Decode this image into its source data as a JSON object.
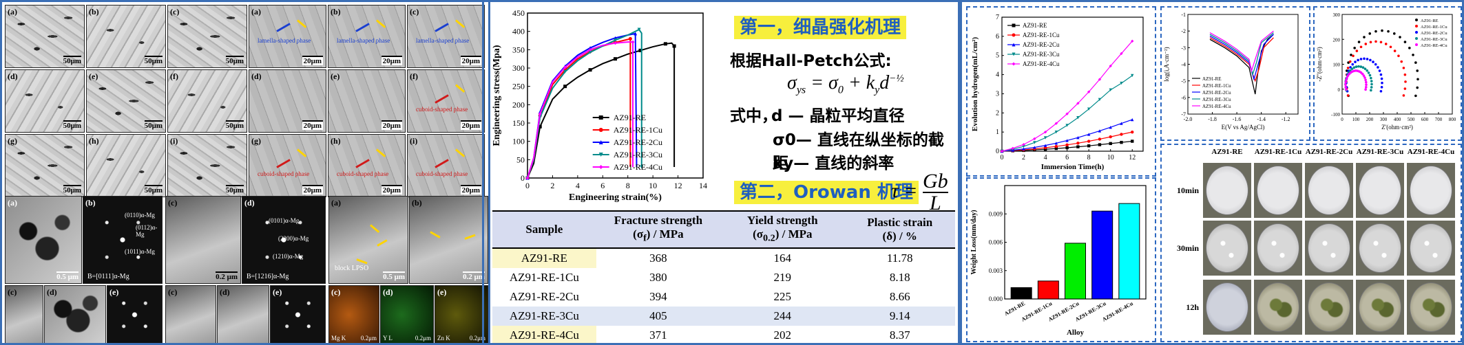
{
  "micrographs": {
    "optical": [
      {
        "label": "(a)",
        "scale": "50μm"
      },
      {
        "label": "(b)",
        "scale": "50μm"
      },
      {
        "label": "(c)",
        "scale": "50μm"
      },
      {
        "label": "(d)",
        "scale": "50μm"
      },
      {
        "label": "(e)",
        "scale": "50μm"
      },
      {
        "label": "(f)",
        "scale": "50μm"
      },
      {
        "label": "(g)",
        "scale": "50μm"
      },
      {
        "label": "(h)",
        "scale": "50μm"
      },
      {
        "label": "(i)",
        "scale": "50μm"
      }
    ],
    "sem": [
      {
        "label": "(a)",
        "scale": "20μm",
        "note": "lamella-shaped phase"
      },
      {
        "label": "(b)",
        "scale": "20μm",
        "note": "lamella-shaped phase"
      },
      {
        "label": "(c)",
        "scale": "20μm",
        "note": "lamella-shaped phase"
      },
      {
        "label": "(d)",
        "scale": "20μm",
        "note": ""
      },
      {
        "label": "(e)",
        "scale": "20μm",
        "note": ""
      },
      {
        "label": "(f)",
        "scale": "20μm",
        "note": "cuboid-shaped phase"
      },
      {
        "label": "(g)",
        "scale": "20μm",
        "note": "cuboid-shaped phase"
      },
      {
        "label": "(h)",
        "scale": "20μm",
        "note": "cuboid-shaped phase"
      },
      {
        "label": "(i)",
        "scale": "20μm",
        "note": "cuboid-shaped phase"
      }
    ],
    "tem_set1": {
      "scale_a": "0.5 μm",
      "zone": "B=[0111]α-Mg",
      "spot1": "(0110)α-Mg",
      "spot2": "(0112)α-Mg",
      "spot3": "(1011)α-Mg"
    },
    "tem_set2": {
      "scale_c": "0.2 μm",
      "zone": "B=[1216]α-Mg",
      "spot1": "(0101)α-Mg",
      "spot2": "(2200)α-Mg",
      "spot3": "(1210)α-Mg"
    },
    "tem_set3": {
      "scale_a": "0.5 μm",
      "scale_b": "0.2 μm",
      "note": "block LPSO",
      "eds": [
        "Mg K",
        "Y L",
        "Zn K"
      ],
      "eds_scale": "0.2μm"
    }
  },
  "chart_data": [
    {
      "type": "line",
      "xlabel": "Engineering strain(%)",
      "ylabel": "Engineering stress(Mpa)",
      "xlim": [
        0,
        14
      ],
      "ylim": [
        0,
        450
      ],
      "xticks": [
        0,
        2,
        4,
        6,
        8,
        10,
        12,
        14
      ],
      "yticks": [
        0,
        50,
        100,
        150,
        200,
        250,
        300,
        350,
        400,
        450
      ],
      "legend": "center-right",
      "series": [
        {
          "name": "AZ91-RE",
          "color": "#000000",
          "marker": "square",
          "points": [
            [
              0,
              0
            ],
            [
              0.5,
              40
            ],
            [
              1,
              140
            ],
            [
              2,
              215
            ],
            [
              3,
              250
            ],
            [
              4,
              275
            ],
            [
              5,
              295
            ],
            [
              6,
              312
            ],
            [
              7,
              325
            ],
            [
              8,
              338
            ],
            [
              9,
              348
            ],
            [
              10,
              358
            ],
            [
              11,
              366
            ],
            [
              11.5,
              368
            ],
            [
              11.7,
              360
            ],
            [
              11.7,
              30
            ]
          ]
        },
        {
          "name": "AZ91-RE-1Cu",
          "color": "#ff0000",
          "marker": "circle",
          "points": [
            [
              0,
              0
            ],
            [
              0.5,
              50
            ],
            [
              1,
              170
            ],
            [
              2,
              255
            ],
            [
              3,
              295
            ],
            [
              4,
              325
            ],
            [
              5,
              345
            ],
            [
              6,
              360
            ],
            [
              7,
              370
            ],
            [
              8,
              378
            ],
            [
              8.2,
              380
            ],
            [
              8.2,
              30
            ]
          ]
        },
        {
          "name": "AZ91-RE-2Cu",
          "color": "#0000ff",
          "marker": "triangle",
          "points": [
            [
              0,
              0
            ],
            [
              0.5,
              55
            ],
            [
              1,
              180
            ],
            [
              2,
              265
            ],
            [
              3,
              305
            ],
            [
              4,
              335
            ],
            [
              5,
              355
            ],
            [
              6,
              370
            ],
            [
              7,
              382
            ],
            [
              8,
              390
            ],
            [
              8.6,
              394
            ],
            [
              8.7,
              30
            ]
          ]
        },
        {
          "name": "AZ91-RE-3Cu",
          "color": "#008b8b",
          "marker": "triangle-down",
          "points": [
            [
              0,
              0
            ],
            [
              0.5,
              50
            ],
            [
              1,
              165
            ],
            [
              2,
              245
            ],
            [
              3,
              290
            ],
            [
              4,
              320
            ],
            [
              5,
              343
            ],
            [
              6,
              360
            ],
            [
              7,
              376
            ],
            [
              8,
              390
            ],
            [
              8.9,
              405
            ],
            [
              9.1,
              395
            ],
            [
              9.1,
              30
            ]
          ]
        },
        {
          "name": "AZ91-RE-4Cu",
          "color": "#ff00ff",
          "marker": "diamond",
          "points": [
            [
              0,
              0
            ],
            [
              0.5,
              55
            ],
            [
              1,
              175
            ],
            [
              2,
              262
            ],
            [
              3,
              302
            ],
            [
              4,
              330
            ],
            [
              5,
              350
            ],
            [
              6,
              362
            ],
            [
              7,
              368
            ],
            [
              8,
              371
            ],
            [
              8.4,
              371
            ],
            [
              8.4,
              30
            ]
          ]
        }
      ]
    },
    {
      "type": "table",
      "columns": [
        "Sample",
        "Fracture strength (σf) / MPa",
        "Yield strength (σ0.2) / MPa",
        "Plastic strain (δ) / %"
      ],
      "rows": [
        [
          "AZ91-RE",
          "368",
          "164",
          "11.78"
        ],
        [
          "AZ91-RE-1Cu",
          "380",
          "219",
          "8.18"
        ],
        [
          "AZ91-RE-2Cu",
          "394",
          "225",
          "8.66"
        ],
        [
          "AZ91-RE-3Cu",
          "405",
          "244",
          "9.14"
        ],
        [
          "AZ91-RE-4Cu",
          "371",
          "202",
          "8.37"
        ]
      ]
    },
    {
      "type": "line",
      "xlabel": "Immersion Time(h)",
      "ylabel": "Evolution hydrogen(mL/cm²)",
      "xlim": [
        0,
        13
      ],
      "ylim": [
        0,
        7
      ],
      "xticks": [
        0,
        2,
        4,
        6,
        8,
        10,
        12
      ],
      "yticks": [
        0,
        1,
        2,
        3,
        4,
        5,
        6,
        7
      ],
      "legend": "top-left",
      "x": [
        0,
        1,
        2,
        3,
        4,
        5,
        6,
        7,
        8,
        9,
        10,
        11,
        12
      ],
      "series": [
        {
          "name": "AZ91-RE",
          "color": "#000000",
          "marker": "square",
          "values": [
            0,
            0.02,
            0.04,
            0.07,
            0.1,
            0.14,
            0.18,
            0.23,
            0.28,
            0.34,
            0.4,
            0.46,
            0.52
          ]
        },
        {
          "name": "AZ91-RE-1Cu",
          "color": "#ff0000",
          "marker": "circle",
          "values": [
            0,
            0.03,
            0.07,
            0.12,
            0.18,
            0.25,
            0.33,
            0.42,
            0.52,
            0.63,
            0.75,
            0.88,
            1.0
          ]
        },
        {
          "name": "AZ91-RE-2Cu",
          "color": "#0000ff",
          "marker": "triangle",
          "values": [
            0,
            0.05,
            0.12,
            0.2,
            0.3,
            0.42,
            0.56,
            0.71,
            0.88,
            1.06,
            1.25,
            1.45,
            1.65
          ]
        },
        {
          "name": "AZ91-RE-3Cu",
          "color": "#008b8b",
          "marker": "triangle-down",
          "values": [
            0,
            0.1,
            0.25,
            0.45,
            0.7,
            1.0,
            1.35,
            1.75,
            2.2,
            2.7,
            3.2,
            3.55,
            3.95
          ]
        },
        {
          "name": "AZ91-RE-4Cu",
          "color": "#ff00ff",
          "marker": "diamond",
          "values": [
            0,
            0.15,
            0.35,
            0.65,
            1.0,
            1.45,
            1.95,
            2.5,
            3.1,
            3.75,
            4.45,
            5.1,
            5.75
          ]
        }
      ]
    },
    {
      "type": "bar",
      "xlabel": "Alloy",
      "ylabel": "Weight Loss(mm/day)",
      "ylim": [
        0,
        0.012
      ],
      "yticks": [
        0.0,
        0.003,
        0.006,
        0.009
      ],
      "categories": [
        "AZ91-RE",
        "AZ91-RE-1Cu",
        "AZ91-RE-2Cu",
        "AZ91-RE-3Cu",
        "AZ91-RE-4Cu"
      ],
      "values": [
        0.0012,
        0.0019,
        0.0059,
        0.0093,
        0.0101
      ],
      "colors": [
        "#000000",
        "#ff0000",
        "#00ee00",
        "#0000ff",
        "#00ffff"
      ]
    },
    {
      "type": "line",
      "xlabel": "E(V vs Ag/AgCl)",
      "ylabel": "log(i,A·cm⁻²)",
      "xlim": [
        -2.0,
        -1.1
      ],
      "ylim": [
        -7,
        -1
      ],
      "xticks": [
        -2.0,
        -1.8,
        -1.6,
        -1.4,
        -1.2
      ],
      "yticks": [
        -7,
        -6,
        -5,
        -4,
        -3,
        -2,
        -1
      ],
      "legend": "bottom-left",
      "series": [
        {
          "name": "AZ91-RE",
          "color": "#000000",
          "points": [
            [
              -1.82,
              -2.5
            ],
            [
              -1.7,
              -3.0
            ],
            [
              -1.6,
              -3.5
            ],
            [
              -1.5,
              -4.2
            ],
            [
              -1.45,
              -5.8
            ],
            [
              -1.43,
              -4.6
            ],
            [
              -1.4,
              -3.2
            ],
            [
              -1.35,
              -2.5
            ],
            [
              -1.3,
              -2.2
            ]
          ]
        },
        {
          "name": "AZ91-RE-1Cu",
          "color": "#ff0000",
          "points": [
            [
              -1.82,
              -2.4
            ],
            [
              -1.7,
              -2.9
            ],
            [
              -1.6,
              -3.4
            ],
            [
              -1.5,
              -4.0
            ],
            [
              -1.45,
              -5.0
            ],
            [
              -1.42,
              -4.3
            ],
            [
              -1.38,
              -3.0
            ],
            [
              -1.3,
              -2.4
            ]
          ]
        },
        {
          "name": "AZ91-RE-2Cu",
          "color": "#0000ff",
          "points": [
            [
              -1.82,
              -2.3
            ],
            [
              -1.7,
              -2.8
            ],
            [
              -1.6,
              -3.3
            ],
            [
              -1.5,
              -3.9
            ],
            [
              -1.46,
              -4.9
            ],
            [
              -1.43,
              -4.1
            ],
            [
              -1.38,
              -2.8
            ],
            [
              -1.3,
              -2.2
            ]
          ]
        },
        {
          "name": "AZ91-RE-3Cu",
          "color": "#008b8b",
          "points": [
            [
              -1.82,
              -2.2
            ],
            [
              -1.7,
              -2.7
            ],
            [
              -1.6,
              -3.2
            ],
            [
              -1.5,
              -3.8
            ],
            [
              -1.47,
              -4.6
            ],
            [
              -1.44,
              -3.9
            ],
            [
              -1.4,
              -2.7
            ],
            [
              -1.3,
              -2.1
            ]
          ]
        },
        {
          "name": "AZ91-RE-4Cu",
          "color": "#ff00ff",
          "points": [
            [
              -1.82,
              -2.1
            ],
            [
              -1.7,
              -2.6
            ],
            [
              -1.6,
              -3.1
            ],
            [
              -1.5,
              -3.7
            ],
            [
              -1.48,
              -4.4
            ],
            [
              -1.45,
              -3.7
            ],
            [
              -1.4,
              -2.6
            ],
            [
              -1.3,
              -2.0
            ]
          ]
        }
      ]
    },
    {
      "type": "scatter",
      "xlabel": "Z'(ohm·cm²)",
      "ylabel": "-Z''(ohm·cm²)",
      "xlim": [
        0,
        800
      ],
      "ylim": [
        -100,
        300
      ],
      "xticks": [
        0,
        100,
        200,
        300,
        400,
        500,
        600,
        700,
        800
      ],
      "yticks": [
        -100,
        0,
        100,
        200,
        300
      ],
      "legend": "top-right",
      "series": [
        {
          "name": "AZ91-RE",
          "color": "#000000",
          "center": [
            290,
            40
          ],
          "radius": 260
        },
        {
          "name": "AZ91-RE-1Cu",
          "color": "#ff0000",
          "center": [
            245,
            30
          ],
          "radius": 215
        },
        {
          "name": "AZ91-RE-2Cu",
          "color": "#0000ff",
          "center": [
            160,
            25
          ],
          "radius": 130
        },
        {
          "name": "AZ91-RE-3Cu",
          "color": "#008b8b",
          "center": [
            120,
            20
          ],
          "radius": 95
        },
        {
          "name": "AZ91-RE-4Cu",
          "color": "#ff00ff",
          "center": [
            100,
            18
          ],
          "radius": 75
        }
      ]
    }
  ],
  "mechanism": {
    "title1": "第一，细晶强化机理",
    "hp_intro": "根据Hall-Petch公式:",
    "eq1": "σys = σ0 + ky d^(-1/2)",
    "where": "式中，",
    "def_d": "d — 晶粒平均直径",
    "def_s0": "σ0— 直线在纵坐标的截距",
    "def_ky": "ky— 直线的斜率",
    "title2": "第二，Orowan 机理",
    "eq2": "τ = Gb / L"
  },
  "immersion": {
    "columns": [
      "AZ91-RE",
      "AZ91-RE-1Cu",
      "AZ91-RE-2Cu",
      "AZ91-RE-3Cu",
      "AZ91-RE-4Cu"
    ],
    "rows": [
      "10min",
      "30min",
      "12h"
    ]
  }
}
